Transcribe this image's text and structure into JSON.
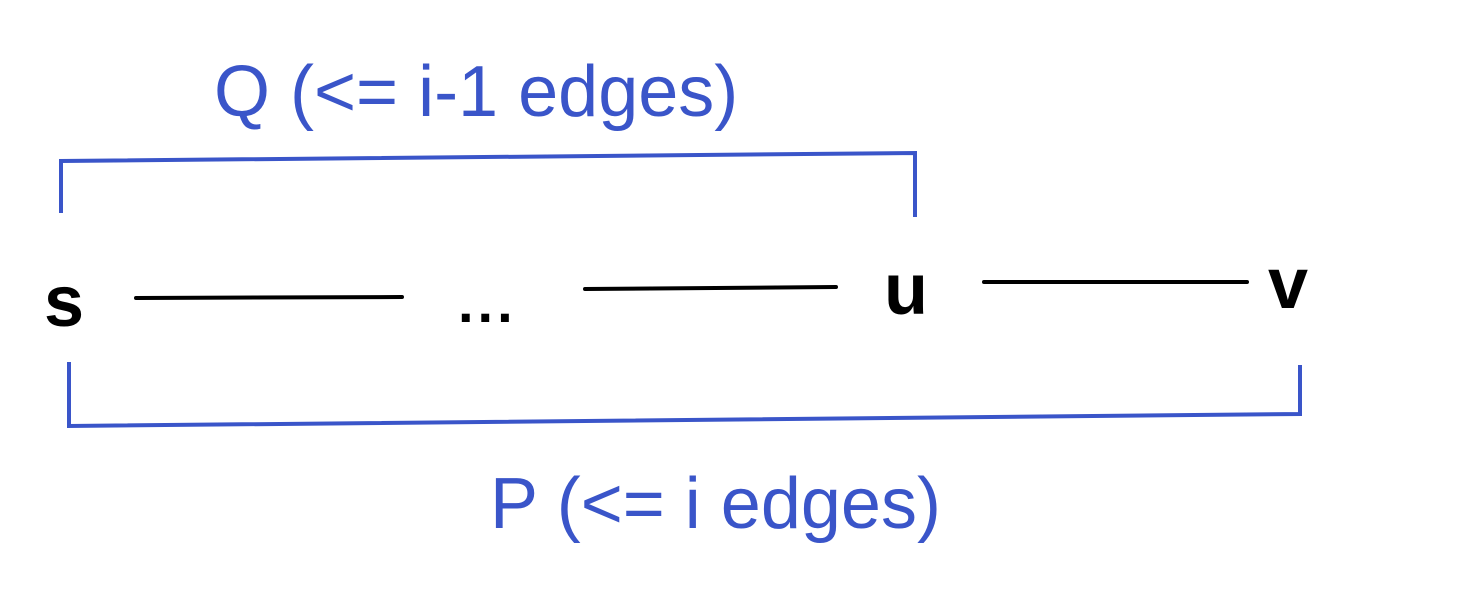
{
  "colors": {
    "accent": "#3a55c9",
    "ink": "#000000",
    "background": "#ffffff"
  },
  "nodes": {
    "s": "s",
    "u": "u",
    "v": "v",
    "ellipsis": "..."
  },
  "brackets": {
    "top_label": "Q (<= i-1 edges)",
    "bottom_label": "P (<= i edges)"
  }
}
